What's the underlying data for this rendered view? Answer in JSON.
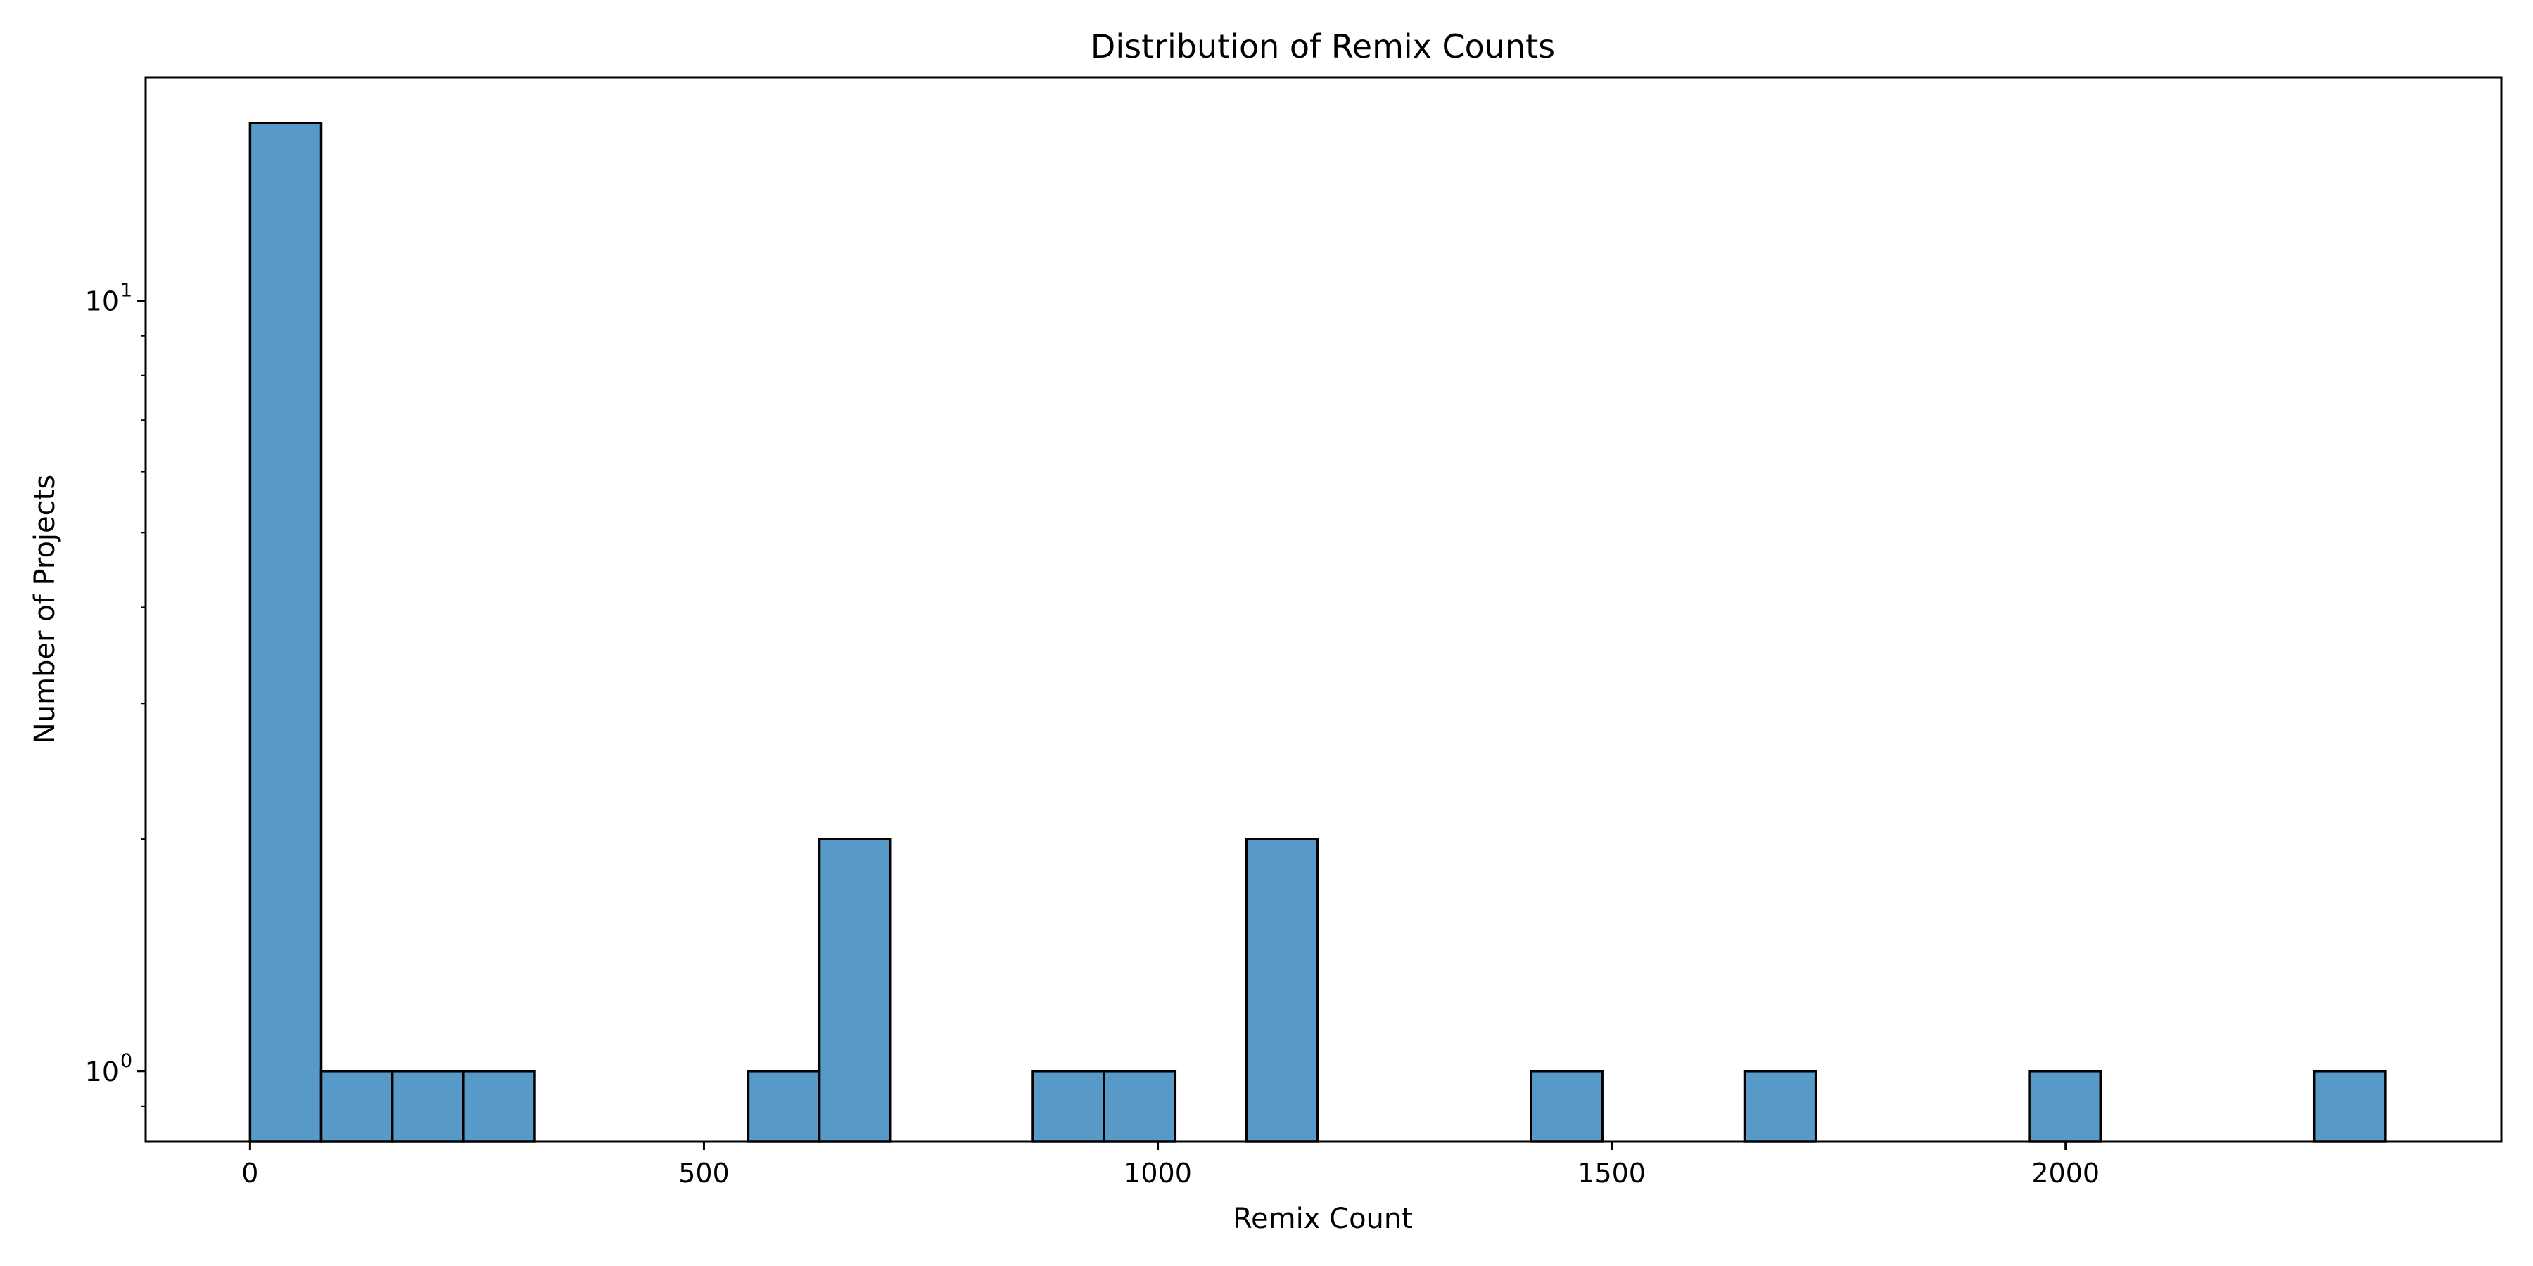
{
  "chart_data": {
    "type": "bar",
    "title": "Distribution of Remix Counts",
    "xlabel": "Remix Count",
    "ylabel": "Number of Projects",
    "xlim": [
      -115,
      2480
    ],
    "ylim": [
      0.81,
      19.5
    ],
    "y_scale": "log",
    "grid": false,
    "bar_color": "#5799c7",
    "x_ticks": [
      0,
      500,
      1000,
      1500,
      2000
    ],
    "x_tick_labels": [
      "0",
      "500",
      "1000",
      "1500",
      "2000"
    ],
    "y_ticks": [
      {
        "value": 1,
        "base": "10",
        "exp": "0"
      },
      {
        "value": 10,
        "base": "10",
        "exp": "1"
      }
    ],
    "bins": [
      {
        "x0": 0,
        "x1": 78.4,
        "count": 17
      },
      {
        "x0": 78.4,
        "x1": 156.8,
        "count": 1
      },
      {
        "x0": 156.8,
        "x1": 235.2,
        "count": 1
      },
      {
        "x0": 235.2,
        "x1": 313.6,
        "count": 1
      },
      {
        "x0": 548.8,
        "x1": 627.2,
        "count": 1
      },
      {
        "x0": 627.2,
        "x1": 705.6,
        "count": 2
      },
      {
        "x0": 862.4,
        "x1": 940.8,
        "count": 1
      },
      {
        "x0": 940.8,
        "x1": 1019.2,
        "count": 1
      },
      {
        "x0": 1097.6,
        "x1": 1176.0,
        "count": 2
      },
      {
        "x0": 1411.2,
        "x1": 1489.6,
        "count": 1
      },
      {
        "x0": 1646.4,
        "x1": 1724.8,
        "count": 1
      },
      {
        "x0": 1960.0,
        "x1": 2038.4,
        "count": 1
      },
      {
        "x0": 2273.6,
        "x1": 2352.0,
        "count": 1
      }
    ]
  }
}
